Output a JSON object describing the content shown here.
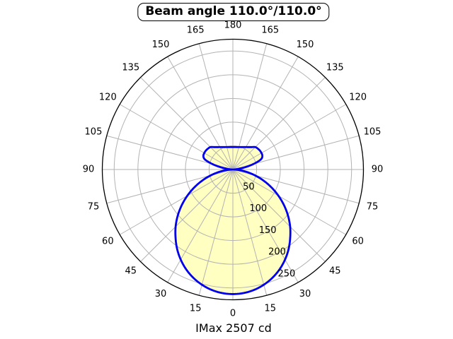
{
  "title": "Beam angle 110.0°/110.0°",
  "footer": "IMax 2507 cd",
  "colors": {
    "curve": "#0000ee",
    "curve_fill": "#ffffc2",
    "grid": "#b3b3b3",
    "axis": "#000000",
    "background": "#ffffff",
    "text": "#000000"
  },
  "chart_data": {
    "type": "line",
    "subtype": "polar-intensity-distribution",
    "title": "Beam angle 110.0°/110.0°",
    "annotation": "IMax 2507 cd",
    "beam_angle_deg": [
      110.0,
      110.0
    ],
    "imax_cd": 2507,
    "angle_ticks_deg": [
      0,
      15,
      30,
      45,
      60,
      75,
      90,
      105,
      120,
      135,
      150,
      165,
      180
    ],
    "angle_ticks_mirrored": true,
    "r_ticks": [
      50,
      100,
      150,
      200,
      250
    ],
    "r_axis_max": 275,
    "grid": true,
    "spoke_step_deg": 15,
    "symmetric_about_vertical": true,
    "theta_deg": [
      0,
      5,
      10,
      15,
      20,
      25,
      30,
      35,
      40,
      45,
      50,
      55,
      60,
      65,
      70,
      75,
      80,
      85,
      90,
      95,
      100,
      105,
      110,
      115,
      120,
      125,
      130,
      135,
      140,
      145,
      150,
      155,
      160,
      165,
      170,
      175,
      180
    ],
    "intensity": [
      263,
      261.7,
      258,
      251.8,
      243.3,
      232.6,
      219.6,
      204.7,
      187.8,
      170.5,
      151.6,
      131.5,
      110.8,
      89.8,
      69,
      48.7,
      29.6,
      12.5,
      0,
      8,
      24,
      45,
      63,
      68.5,
      69.5,
      69.5,
      68.5,
      66.9,
      61.7,
      57.7,
      54.6,
      52.2,
      50.3,
      49,
      48,
      47.5,
      47.3
    ]
  }
}
